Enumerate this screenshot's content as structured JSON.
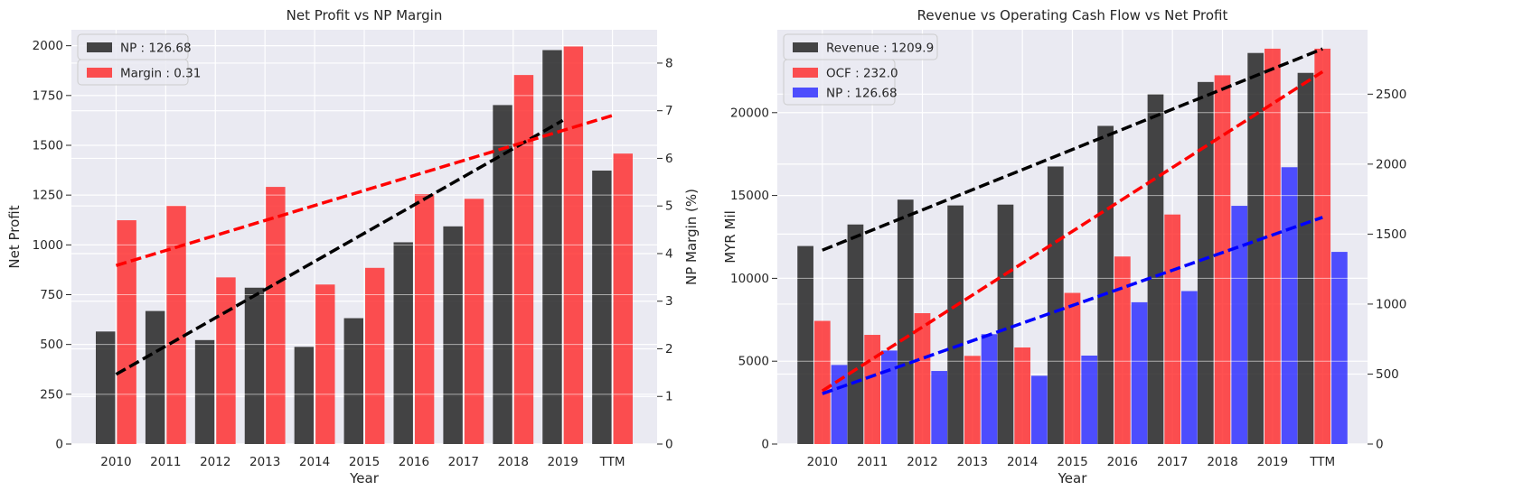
{
  "colors": {
    "plot_bg": "#EAEAF2",
    "grid": "#FFFFFF",
    "np_bar": "#262626",
    "red": "#FF2626",
    "blue": "#2626FF",
    "trend_black": "#000000",
    "trend_red": "#FF0000",
    "trend_blue": "#0000FF"
  },
  "chart_data": [
    {
      "type": "bar",
      "title": "Net Profit vs NP Margin",
      "xlabel": "Year",
      "ylabel": "Net Profit",
      "y2label": "NP Margin (%)",
      "categories": [
        "2010",
        "2011",
        "2012",
        "2013",
        "2014",
        "2015",
        "2016",
        "2017",
        "2018",
        "2019",
        "TTM"
      ],
      "ylim": [
        0,
        2080
      ],
      "y2lim": [
        0,
        8.7
      ],
      "yticks": [
        0,
        250,
        500,
        750,
        1000,
        1250,
        1500,
        1750,
        2000
      ],
      "y2ticks": [
        0,
        1,
        2,
        3,
        4,
        5,
        6,
        7,
        8
      ],
      "series": [
        {
          "name": "NP : 126.68",
          "axis": "left",
          "color": "np_bar",
          "values": [
            565,
            668,
            522,
            785,
            488,
            632,
            1013,
            1093,
            1702,
            1978,
            1373
          ]
        },
        {
          "name": "Margin : 0.31",
          "axis": "right",
          "color": "red",
          "values": [
            4.7,
            5.0,
            3.5,
            5.4,
            3.35,
            3.7,
            5.25,
            5.15,
            7.75,
            8.35,
            6.1
          ]
        }
      ],
      "trendlines": [
        {
          "axis": "left",
          "color": "trend_black",
          "from_index": 0,
          "to_index": 9,
          "start": 350,
          "end": 1625
        },
        {
          "axis": "right",
          "color": "trend_red",
          "from_index": 0,
          "to_index": 10,
          "start": 3.75,
          "end": 6.9
        }
      ],
      "legend": "top-left",
      "grid": true
    },
    {
      "type": "bar",
      "title": "Revenue vs Operating Cash Flow vs Net Profit",
      "xlabel": "Year",
      "ylabel": "MYR Mil",
      "categories": [
        "2010",
        "2011",
        "2012",
        "2013",
        "2014",
        "2015",
        "2016",
        "2017",
        "2018",
        "2019",
        "TTM"
      ],
      "ylim": [
        0,
        25000
      ],
      "y2lim": [
        0,
        2960
      ],
      "yticks": [
        0,
        5000,
        10000,
        15000,
        20000
      ],
      "y2ticks": [
        0,
        500,
        1000,
        1500,
        2000,
        2500
      ],
      "series": [
        {
          "name": "Revenue : 1209.9",
          "axis": "left",
          "color": "np_bar",
          "values": [
            11950,
            13250,
            14750,
            14400,
            14450,
            16750,
            19200,
            21100,
            21850,
            23600,
            22400
          ]
        },
        {
          "name": "OCF : 232.0",
          "axis": "right",
          "color": "red",
          "values": [
            880,
            780,
            935,
            630,
            690,
            1080,
            1340,
            1640,
            2635,
            2825,
            2825
          ]
        },
        {
          "name": "NP : 126.68",
          "axis": "right",
          "color": "blue",
          "values": [
            565,
            668,
            522,
            785,
            488,
            632,
            1013,
            1093,
            1702,
            1978,
            1373
          ]
        }
      ],
      "trendlines": [
        {
          "axis": "left",
          "color": "trend_black",
          "from_index": 0,
          "to_index": 10,
          "start": 11700,
          "end": 23850
        },
        {
          "axis": "right",
          "color": "trend_red",
          "from_index": 0,
          "to_index": 10,
          "start": 380,
          "end": 2660
        },
        {
          "axis": "right",
          "color": "trend_blue",
          "from_index": 0,
          "to_index": 10,
          "start": 360,
          "end": 1620
        }
      ],
      "legend": "top-left",
      "grid": true
    }
  ]
}
